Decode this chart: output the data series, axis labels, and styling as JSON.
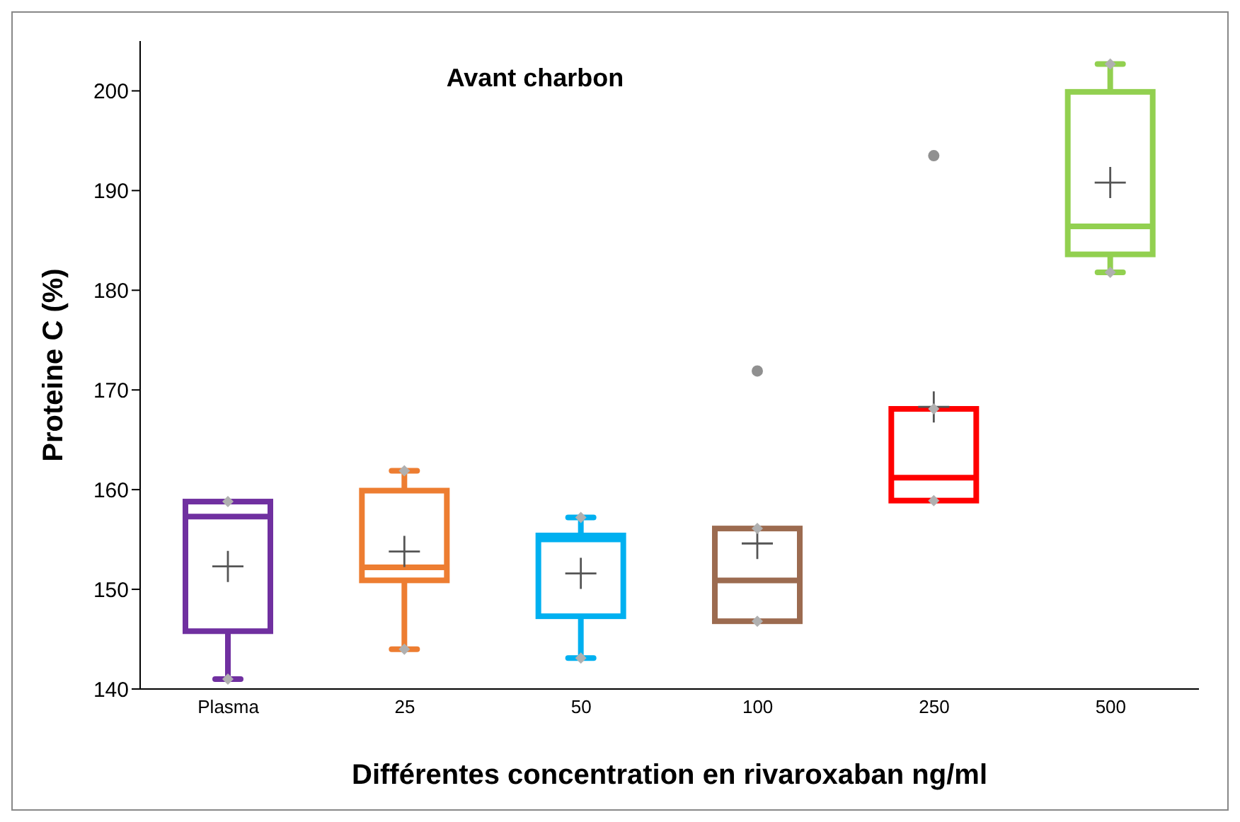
{
  "chart_data": {
    "type": "box",
    "title": "Avant charbon",
    "xlabel": "Différentes concentration en rivaroxaban ng/ml",
    "ylabel": "Proteine C (%)",
    "categories": [
      "Plasma",
      "25",
      "50",
      "100",
      "250",
      "500"
    ],
    "colors": [
      "#7030a0",
      "#ed7d31",
      "#00b0f0",
      "#9c6b50",
      "#ff0000",
      "#92d050"
    ],
    "boxes": [
      {
        "low": 141.0,
        "q1": 145.8,
        "median": 157.3,
        "q3": 158.8,
        "high": 158.8
      },
      {
        "low": 144.0,
        "q1": 150.9,
        "median": 152.2,
        "q3": 159.9,
        "high": 161.9
      },
      {
        "low": 143.1,
        "q1": 147.3,
        "median": 155.0,
        "q3": 155.4,
        "high": 157.2
      },
      {
        "low": 146.8,
        "q1": 146.8,
        "median": 150.9,
        "q3": 156.1,
        "high": 156.1,
        "outliers": [
          171.9
        ]
      },
      {
        "low": 158.9,
        "q1": 158.9,
        "median": 161.2,
        "q3": 168.1,
        "high": 168.1,
        "outliers": [
          193.5
        ]
      },
      {
        "low": 181.8,
        "q1": 183.6,
        "median": 186.4,
        "q3": 199.9,
        "high": 202.7
      }
    ],
    "series": [
      {
        "type": "scatter",
        "marker": "cross",
        "color": "#555555",
        "x": [
          "Plasma",
          "25",
          "50",
          "100",
          "250",
          "500"
        ],
        "values": [
          152.3,
          153.8,
          151.6,
          154.6,
          168.3,
          190.8
        ]
      },
      {
        "type": "scatter",
        "marker": "diamond",
        "color": "#b0b0b0",
        "x": [
          "Plasma",
          "25",
          "50",
          "100",
          "250",
          "500",
          "Plasma",
          "25",
          "50",
          "100",
          "250",
          "500"
        ],
        "values": [
          141.0,
          144.0,
          143.1,
          146.8,
          158.9,
          181.8,
          158.8,
          161.9,
          157.2,
          156.1,
          168.1,
          202.7
        ]
      }
    ],
    "ylim": [
      140,
      205
    ],
    "yticks": [
      140,
      150,
      160,
      170,
      180,
      190,
      200
    ],
    "grid": false
  }
}
